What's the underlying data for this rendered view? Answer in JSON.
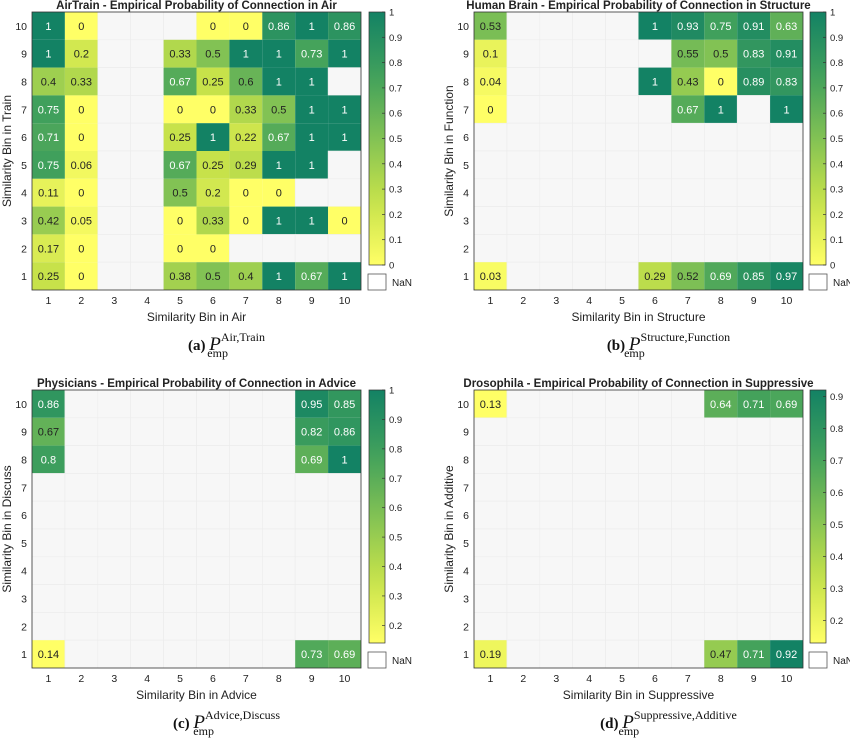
{
  "nan_label": "NaN",
  "chart_data": [
    {
      "type": "heatmap",
      "title": "AirTrain - Empirical Probability of Connection in Air",
      "xlabel": "Similarity Bin in Air",
      "ylabel": "Similarity Bin in Train",
      "x_ticks": [
        "1",
        "2",
        "3",
        "4",
        "5",
        "6",
        "7",
        "8",
        "9",
        "10"
      ],
      "y_ticks": [
        "1",
        "2",
        "3",
        "4",
        "5",
        "6",
        "7",
        "8",
        "9",
        "10"
      ],
      "colorbar": {
        "min": 0,
        "max": 1,
        "ticks": [
          "0",
          "0.1",
          "0.2",
          "0.3",
          "0.4",
          "0.5",
          "0.6",
          "0.7",
          "0.8",
          "0.9",
          "1"
        ]
      },
      "caption": {
        "label": "(a)",
        "sup": "Air,Train",
        "sub": "emp"
      },
      "grid": [
        [
          1,
          0,
          null,
          null,
          null,
          0,
          0,
          0.86,
          1,
          0.86
        ],
        [
          1,
          0.2,
          null,
          null,
          0.33,
          0.5,
          1,
          1,
          0.73,
          1
        ],
        [
          0.4,
          0.33,
          null,
          null,
          0.67,
          0.25,
          0.6,
          1,
          1,
          null
        ],
        [
          0.75,
          0,
          null,
          null,
          0,
          0,
          0.33,
          0.5,
          1,
          1
        ],
        [
          0.71,
          0,
          null,
          null,
          0.25,
          1,
          0.22,
          0.67,
          1,
          1
        ],
        [
          0.75,
          0.06,
          null,
          null,
          0.67,
          0.25,
          0.29,
          1,
          1,
          null
        ],
        [
          0.11,
          0,
          null,
          null,
          0.5,
          0.2,
          0,
          0,
          null,
          null
        ],
        [
          0.42,
          0.05,
          null,
          null,
          0,
          0.33,
          0,
          1,
          1,
          0
        ],
        [
          0.17,
          0,
          null,
          null,
          0,
          0,
          null,
          null,
          null,
          null
        ],
        [
          0.25,
          0,
          null,
          null,
          0.38,
          0.5,
          0.4,
          1,
          0.67,
          1
        ]
      ]
    },
    {
      "type": "heatmap",
      "title": "Human Brain - Empirical Probability of Connection in Structure",
      "xlabel": "Similarity Bin in Structure",
      "ylabel": "Similarity Bin in Function",
      "x_ticks": [
        "1",
        "2",
        "3",
        "4",
        "5",
        "6",
        "7",
        "8",
        "9",
        "10"
      ],
      "y_ticks": [
        "1",
        "2",
        "3",
        "4",
        "5",
        "6",
        "7",
        "8",
        "9",
        "10"
      ],
      "colorbar": {
        "min": 0,
        "max": 1,
        "ticks": [
          "0",
          "0.1",
          "0.2",
          "0.3",
          "0.4",
          "0.5",
          "0.6",
          "0.7",
          "0.8",
          "0.9",
          "1"
        ]
      },
      "caption": {
        "label": "(b)",
        "sup": "Structure,Function",
        "sub": "emp"
      },
      "grid": [
        [
          0.53,
          null,
          null,
          null,
          null,
          1,
          0.93,
          0.75,
          0.91,
          0.63
        ],
        [
          0.1,
          null,
          null,
          null,
          null,
          null,
          0.55,
          0.5,
          0.83,
          0.91
        ],
        [
          0.04,
          null,
          null,
          null,
          null,
          1,
          0.43,
          0,
          0.89,
          0.83
        ],
        [
          0,
          null,
          null,
          null,
          null,
          null,
          0.67,
          1,
          null,
          1
        ],
        [
          null,
          null,
          null,
          null,
          null,
          null,
          null,
          null,
          null,
          null
        ],
        [
          null,
          null,
          null,
          null,
          null,
          null,
          null,
          null,
          null,
          null
        ],
        [
          null,
          null,
          null,
          null,
          null,
          null,
          null,
          null,
          null,
          null
        ],
        [
          null,
          null,
          null,
          null,
          null,
          null,
          null,
          null,
          null,
          null
        ],
        [
          null,
          null,
          null,
          null,
          null,
          null,
          null,
          null,
          null,
          null
        ],
        [
          0.03,
          null,
          null,
          null,
          null,
          0.29,
          0.52,
          0.69,
          0.85,
          0.97
        ]
      ]
    },
    {
      "type": "heatmap",
      "title": "Physicians - Empirical Probability of Connection in Advice",
      "xlabel": "Similarity Bin in Advice",
      "ylabel": "Similarity Bin in Discuss",
      "x_ticks": [
        "1",
        "2",
        "3",
        "4",
        "5",
        "6",
        "7",
        "8",
        "9",
        "10"
      ],
      "y_ticks": [
        "1",
        "2",
        "3",
        "4",
        "5",
        "6",
        "7",
        "8",
        "9",
        "10"
      ],
      "colorbar": {
        "min": 0.14,
        "max": 1,
        "ticks": [
          "0.2",
          "0.3",
          "0.4",
          "0.5",
          "0.6",
          "0.7",
          "0.8",
          "0.9",
          "1"
        ]
      },
      "caption": {
        "label": "(c)",
        "sup": "Advice,Discuss",
        "sub": "emp"
      },
      "grid": [
        [
          0.86,
          null,
          null,
          null,
          null,
          null,
          null,
          null,
          0.95,
          0.85
        ],
        [
          0.67,
          null,
          null,
          null,
          null,
          null,
          null,
          null,
          0.82,
          0.86
        ],
        [
          0.8,
          null,
          null,
          null,
          null,
          null,
          null,
          null,
          0.69,
          1
        ],
        [
          null,
          null,
          null,
          null,
          null,
          null,
          null,
          null,
          null,
          null
        ],
        [
          null,
          null,
          null,
          null,
          null,
          null,
          null,
          null,
          null,
          null
        ],
        [
          null,
          null,
          null,
          null,
          null,
          null,
          null,
          null,
          null,
          null
        ],
        [
          null,
          null,
          null,
          null,
          null,
          null,
          null,
          null,
          null,
          null
        ],
        [
          null,
          null,
          null,
          null,
          null,
          null,
          null,
          null,
          null,
          null
        ],
        [
          null,
          null,
          null,
          null,
          null,
          null,
          null,
          null,
          null,
          null
        ],
        [
          0.14,
          null,
          null,
          null,
          null,
          null,
          null,
          null,
          0.73,
          0.69
        ]
      ]
    },
    {
      "type": "heatmap",
      "title": "Drosophila - Empirical Probability of Connection in Suppressive",
      "xlabel": "Similarity Bin in Suppressive",
      "ylabel": "Similarity Bin in Additive",
      "x_ticks": [
        "1",
        "2",
        "3",
        "4",
        "5",
        "6",
        "7",
        "8",
        "9",
        "10"
      ],
      "y_ticks": [
        "1",
        "2",
        "3",
        "4",
        "5",
        "6",
        "7",
        "8",
        "9",
        "10"
      ],
      "colorbar": {
        "min": 0.13,
        "max": 0.92,
        "ticks": [
          "0.2",
          "0.3",
          "0.4",
          "0.5",
          "0.6",
          "0.7",
          "0.8",
          "0.9"
        ]
      },
      "caption": {
        "label": "(d)",
        "sup": "Suppressive,Additive",
        "sub": "emp"
      },
      "grid": [
        [
          0.13,
          null,
          null,
          null,
          null,
          null,
          null,
          0.64,
          0.71,
          0.69
        ],
        [
          null,
          null,
          null,
          null,
          null,
          null,
          null,
          null,
          null,
          null
        ],
        [
          null,
          null,
          null,
          null,
          null,
          null,
          null,
          null,
          null,
          null
        ],
        [
          null,
          null,
          null,
          null,
          null,
          null,
          null,
          null,
          null,
          null
        ],
        [
          null,
          null,
          null,
          null,
          null,
          null,
          null,
          null,
          null,
          null
        ],
        [
          null,
          null,
          null,
          null,
          null,
          null,
          null,
          null,
          null,
          null
        ],
        [
          null,
          null,
          null,
          null,
          null,
          null,
          null,
          null,
          null,
          null
        ],
        [
          null,
          null,
          null,
          null,
          null,
          null,
          null,
          null,
          null,
          null
        ],
        [
          null,
          null,
          null,
          null,
          null,
          null,
          null,
          null,
          null,
          null
        ],
        [
          0.19,
          null,
          null,
          null,
          null,
          null,
          null,
          0.47,
          0.71,
          0.92
        ]
      ]
    }
  ]
}
